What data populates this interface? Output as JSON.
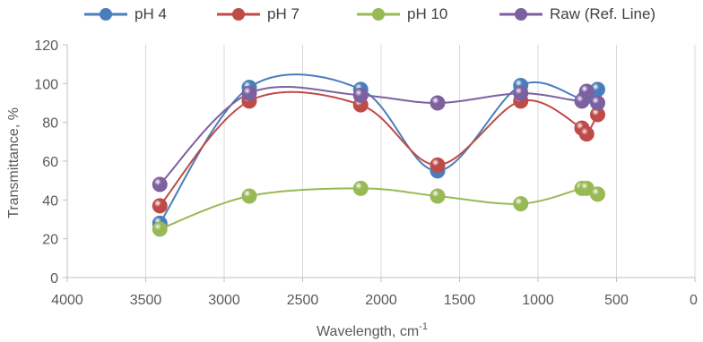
{
  "chart_data": {
    "type": "scatter",
    "title": "",
    "xlabel": "Wavelength, cm",
    "xlabel_superscript": "-1",
    "ylabel": "Transmittance, %",
    "xlim": [
      4000,
      0
    ],
    "ylim": [
      0,
      120
    ],
    "x_ticks": [
      4000,
      3500,
      3000,
      2500,
      2000,
      1500,
      1000,
      500,
      0
    ],
    "y_ticks": [
      0,
      20,
      40,
      60,
      80,
      100,
      120
    ],
    "x_reversed": true,
    "grid": "vertical",
    "smoothed_lines": true,
    "legend_position": "top",
    "series": [
      {
        "name": "pH 4",
        "color": "#4a7ebb",
        "points": [
          [
            3410,
            28
          ],
          [
            2840,
            98
          ],
          [
            2130,
            97
          ],
          [
            1640,
            55
          ],
          [
            1110,
            99
          ],
          [
            710,
            92
          ],
          [
            620,
            97
          ]
        ]
      },
      {
        "name": "pH 7",
        "color": "#be4b48",
        "points": [
          [
            3410,
            37
          ],
          [
            2840,
            91
          ],
          [
            2130,
            89
          ],
          [
            1640,
            58
          ],
          [
            1110,
            91
          ],
          [
            720,
            77
          ],
          [
            690,
            74
          ],
          [
            620,
            84
          ]
        ]
      },
      {
        "name": "pH 10",
        "color": "#98b954",
        "points": [
          [
            3410,
            25
          ],
          [
            2840,
            42
          ],
          [
            2130,
            46
          ],
          [
            1640,
            42
          ],
          [
            1110,
            38
          ],
          [
            720,
            46
          ],
          [
            690,
            46
          ],
          [
            620,
            43
          ]
        ]
      },
      {
        "name": "Raw (Ref. Line)",
        "color": "#7d60a0",
        "points": [
          [
            3410,
            48
          ],
          [
            2840,
            95
          ],
          [
            2130,
            94
          ],
          [
            1640,
            90
          ],
          [
            1110,
            95
          ],
          [
            720,
            91
          ],
          [
            690,
            96
          ],
          [
            620,
            90
          ]
        ]
      }
    ]
  }
}
